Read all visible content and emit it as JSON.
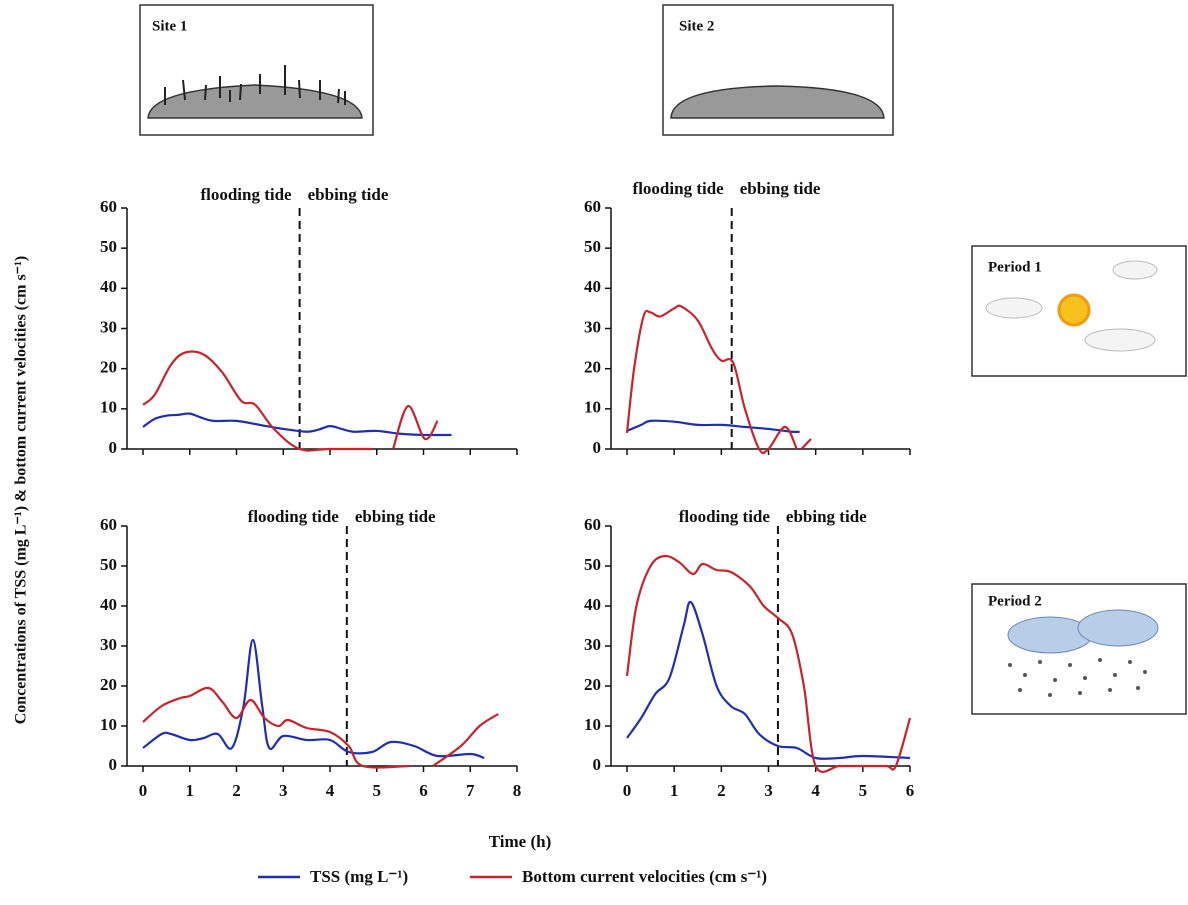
{
  "sites": [
    "Site 1",
    "Site 2"
  ],
  "periods": [
    "Period 1",
    "Period 2"
  ],
  "axis_labels": {
    "y": "Concentrations of TSS (mg L⁻¹) & bottom current velocities (cm s⁻¹)",
    "x": "Time (h)"
  },
  "chart_data": [
    {
      "type": "line",
      "annotations": [
        "flooding tide",
        "ebbing tide"
      ],
      "tide_change_x": 3.35,
      "xlim": [
        0,
        8
      ],
      "xticks": [
        0,
        1,
        2,
        3,
        4,
        5,
        6,
        7,
        8
      ],
      "xtick_labels": false,
      "ylim": [
        0,
        60
      ],
      "yticks": [
        0,
        10,
        20,
        30,
        40,
        50,
        60
      ],
      "series": [
        {
          "name": "TSS (mg L⁻¹)",
          "color": "#1f2fb0",
          "x": [
            0,
            0.25,
            0.5,
            0.75,
            1,
            1.25,
            1.5,
            2,
            2.5,
            3,
            3.5,
            3.75,
            4,
            4.25,
            4.5,
            5,
            5.5,
            6,
            6.6
          ],
          "values": [
            5.5,
            7.5,
            8.3,
            8.5,
            8.8,
            7.8,
            7,
            7,
            6,
            5,
            4.3,
            4.8,
            5.7,
            5,
            4.3,
            4.5,
            3.8,
            3.5,
            3.5
          ]
        },
        {
          "name": "Bottom current velocities (cm s⁻¹)",
          "color": "#c8242b",
          "x": [
            0,
            0.25,
            0.6,
            0.9,
            1.3,
            1.7,
            2.1,
            2.4,
            2.8,
            3.35,
            4,
            4.9,
            5.1,
            5.35,
            5.67,
            6.03,
            6.3
          ],
          "values": [
            11,
            13.5,
            21,
            24,
            23.5,
            19,
            12,
            11,
            5,
            0,
            0,
            0,
            null,
            0,
            10.7,
            2.5,
            7
          ]
        }
      ]
    },
    {
      "type": "line",
      "annotations": [
        "flooding tide",
        "ebbing tide"
      ],
      "tide_change_x": 2.22,
      "xlim": [
        0,
        6
      ],
      "xticks": [
        0,
        1,
        2,
        3,
        4,
        5,
        6
      ],
      "xtick_labels": false,
      "ylim": [
        0,
        60
      ],
      "yticks": [
        0,
        10,
        20,
        30,
        40,
        50,
        60
      ],
      "series": [
        {
          "name": "TSS (mg L⁻¹)",
          "color": "#1f2fb0",
          "x": [
            0,
            0.3,
            0.5,
            1,
            1.5,
            2,
            2.5,
            3,
            3.5,
            3.66
          ],
          "values": [
            4.5,
            6,
            7,
            6.8,
            6,
            6,
            5.5,
            5,
            4.3,
            4.3
          ]
        },
        {
          "name": "Bottom current velocities (cm s⁻¹)",
          "color": "#c8242b",
          "x": [
            0,
            0.15,
            0.35,
            0.5,
            0.7,
            1.0,
            1.15,
            1.5,
            1.8,
            2.0,
            2.25,
            2.5,
            2.8,
            3.0,
            3.35,
            3.6,
            3.65,
            3.7,
            3.9
          ],
          "values": [
            4,
            20,
            33,
            34,
            33,
            35,
            35.5,
            32,
            25,
            22,
            21.5,
            10,
            0,
            0,
            5.5,
            0,
            null,
            0,
            2.5
          ]
        }
      ]
    },
    {
      "type": "line",
      "annotations": [
        "flooding tide",
        "ebbing tide"
      ],
      "tide_change_x": 4.36,
      "xlim": [
        0,
        8
      ],
      "xticks": [
        0,
        1,
        2,
        3,
        4,
        5,
        6,
        7,
        8
      ],
      "xtick_labels": true,
      "ylim": [
        0,
        60
      ],
      "yticks": [
        0,
        10,
        20,
        30,
        40,
        50,
        60
      ],
      "series": [
        {
          "name": "TSS (mg L⁻¹)",
          "color": "#1f2fb0",
          "x": [
            0,
            0.4,
            0.6,
            1,
            1.3,
            1.6,
            1.9,
            2.15,
            2.35,
            2.55,
            2.7,
            3,
            3.5,
            4,
            4.4,
            4.9,
            5.3,
            5.8,
            6.3,
            7,
            7.3
          ],
          "values": [
            4.5,
            8,
            8,
            6.5,
            7,
            8,
            4.5,
            15,
            31.5,
            15,
            4.5,
            7.5,
            6.5,
            6.5,
            3.5,
            3.5,
            6,
            5,
            2.5,
            3,
            2
          ]
        },
        {
          "name": "Bottom current velocities (cm s⁻¹)",
          "color": "#c8242b",
          "x": [
            0,
            0.4,
            0.8,
            1,
            1.4,
            1.7,
            2,
            2.3,
            2.6,
            2.9,
            3.1,
            3.5,
            4,
            4.4,
            4.7,
            5.7,
            5.95,
            6.2,
            6.8,
            7.2,
            7.6
          ],
          "values": [
            11,
            15,
            17,
            17.5,
            19.5,
            16,
            12,
            16.5,
            12,
            10,
            11.5,
            9.5,
            8.5,
            5,
            0,
            0,
            null,
            0,
            5,
            10,
            13
          ]
        }
      ]
    },
    {
      "type": "line",
      "annotations": [
        "flooding tide",
        "ebbing tide"
      ],
      "tide_change_x": 3.2,
      "xlim": [
        0,
        6
      ],
      "xticks": [
        0,
        1,
        2,
        3,
        4,
        5,
        6
      ],
      "xtick_labels": true,
      "ylim": [
        0,
        60
      ],
      "yticks": [
        0,
        10,
        20,
        30,
        40,
        50,
        60
      ],
      "series": [
        {
          "name": "TSS (mg L⁻¹)",
          "color": "#1f2fb0",
          "x": [
            0,
            0.3,
            0.6,
            0.9,
            1.2,
            1.35,
            1.6,
            1.9,
            2.2,
            2.5,
            2.8,
            3.2,
            3.6,
            4.0,
            4.5,
            5,
            6
          ],
          "values": [
            7,
            12,
            18,
            22,
            35,
            41,
            33,
            20,
            15,
            13,
            8,
            5,
            4.5,
            2,
            2,
            2.5,
            2
          ]
        },
        {
          "name": "Bottom current velocities (cm s⁻¹)",
          "color": "#c8242b",
          "x": [
            0,
            0.2,
            0.5,
            0.8,
            1.1,
            1.4,
            1.6,
            1.9,
            2.2,
            2.6,
            2.9,
            3.2,
            3.5,
            3.75,
            4.0,
            4.5,
            5.0,
            5.5,
            5.7,
            6.0
          ],
          "values": [
            22.5,
            40,
            50,
            52.5,
            51,
            48,
            50.5,
            49,
            48.5,
            45,
            40,
            37,
            33,
            20,
            0,
            0,
            0,
            0,
            0,
            12
          ]
        }
      ]
    }
  ]
}
